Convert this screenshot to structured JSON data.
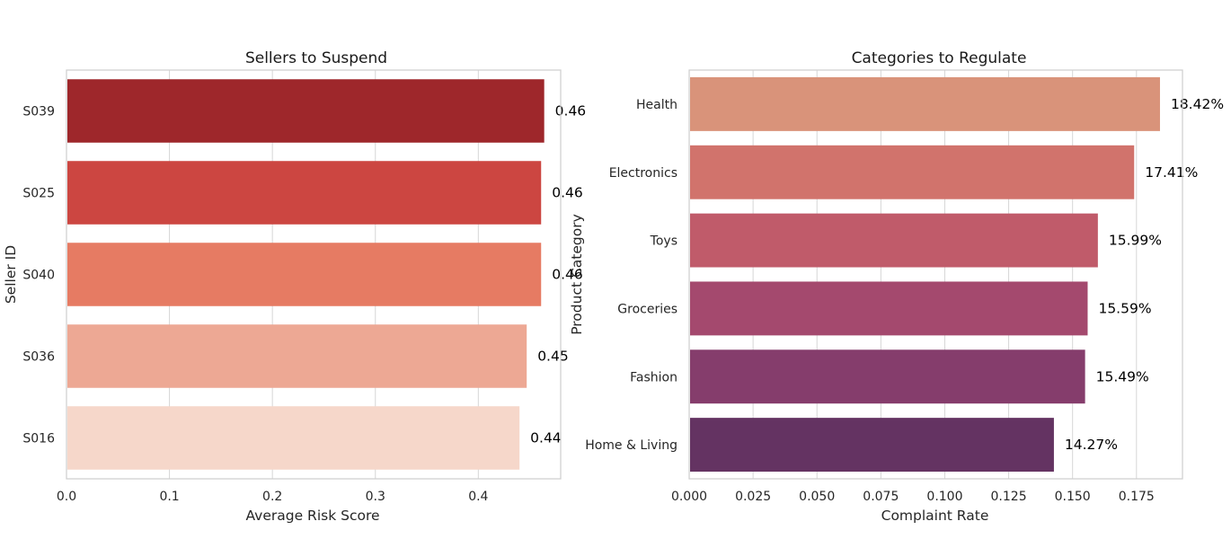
{
  "chart_data": [
    {
      "type": "bar",
      "orientation": "horizontal",
      "title": "Sellers to Suspend",
      "xlabel": "Average Risk Score",
      "ylabel": "Seller ID",
      "categories": [
        "S039",
        "S025",
        "S040",
        "S036",
        "S016"
      ],
      "values": [
        0.464,
        0.461,
        0.461,
        0.447,
        0.44
      ],
      "data_labels": [
        "0.46",
        "0.46",
        "0.46",
        "0.45",
        "0.44"
      ],
      "colors": [
        "#9e272b",
        "#cc4641",
        "#e67b63",
        "#eda894",
        "#f6d7ca"
      ],
      "xlim": [
        0,
        0.48
      ],
      "xticks": [
        0.0,
        0.1,
        0.2,
        0.3,
        0.4
      ],
      "xtick_labels": [
        "0.0",
        "0.1",
        "0.2",
        "0.3",
        "0.4"
      ],
      "grid": "x"
    },
    {
      "type": "bar",
      "orientation": "horizontal",
      "title": "Categories to Regulate",
      "xlabel": "Complaint Rate",
      "ylabel": "Product Category",
      "categories": [
        "Health",
        "Electronics",
        "Toys",
        "Groceries",
        "Fashion",
        "Home & Living"
      ],
      "values": [
        0.1842,
        0.1741,
        0.1599,
        0.1559,
        0.1549,
        0.1427
      ],
      "data_labels": [
        "18.42%",
        "17.41%",
        "15.99%",
        "15.59%",
        "15.49%",
        "14.27%"
      ],
      "colors": [
        "#d9937a",
        "#d1736c",
        "#c05b6a",
        "#a4496e",
        "#853d6c",
        "#643362"
      ],
      "xlim": [
        0,
        0.193
      ],
      "xticks": [
        0.0,
        0.025,
        0.05,
        0.075,
        0.1,
        0.125,
        0.15,
        0.175
      ],
      "xtick_labels": [
        "0.000",
        "0.025",
        "0.050",
        "0.075",
        "0.100",
        "0.125",
        "0.150",
        "0.175"
      ],
      "grid": "x"
    }
  ]
}
